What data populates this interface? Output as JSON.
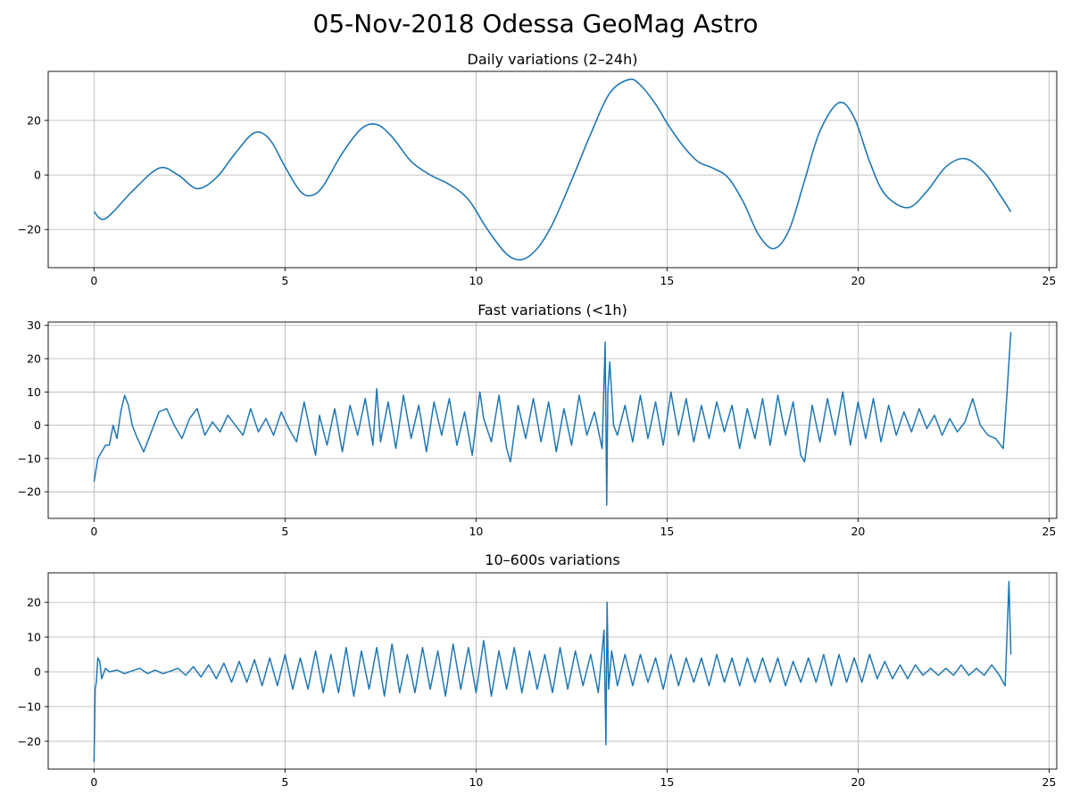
{
  "figure": {
    "title": "05-Nov-2018 Odessa GeoMag Astro",
    "line_color": "#1f77b4",
    "grid_color": "#b0b0b0"
  },
  "chart_data": [
    {
      "type": "line",
      "title": "Daily variations (2–24h)",
      "xlabel": "",
      "ylabel": "",
      "xlim": [
        -1.2,
        25.2
      ],
      "ylim": [
        -34,
        38
      ],
      "xticks": [
        0,
        5,
        10,
        15,
        20,
        25
      ],
      "yticks": [
        -20,
        0,
        20
      ],
      "grid": true,
      "style": "smooth",
      "series": [
        {
          "x": [
            0,
            0.3,
            1,
            1.7,
            2.2,
            2.7,
            3.2,
            3.7,
            4.2,
            4.6,
            5,
            5.4,
            5.7,
            6,
            6.5,
            7,
            7.4,
            7.8,
            8.3,
            8.8,
            9.3,
            9.8,
            10.3,
            10.8,
            11.2,
            11.6,
            12,
            12.5,
            13,
            13.5,
            14,
            14.3,
            14.7,
            15,
            15.4,
            15.8,
            16.2,
            16.6,
            17,
            17.4,
            17.8,
            18.2,
            18.6,
            19,
            19.5,
            19.9,
            20.3,
            20.7,
            21.3,
            21.8,
            22.3,
            22.8,
            23.3,
            23.7,
            24
          ],
          "y": [
            -13.5,
            -16,
            -6,
            2.5,
            0,
            -5,
            -1,
            8,
            15.5,
            13,
            3,
            -6,
            -7.5,
            -4,
            8,
            17,
            18.5,
            14,
            5,
            0,
            -3.5,
            -9,
            -20,
            -29,
            -31,
            -27,
            -18,
            -2,
            15,
            30,
            35,
            33,
            26,
            19,
            11,
            5,
            2.5,
            -1,
            -10,
            -22,
            -27,
            -20,
            -2,
            16,
            26.5,
            21,
            5,
            -7,
            -12,
            -6,
            3,
            6,
            1,
            -7,
            -13.5
          ]
        }
      ]
    },
    {
      "type": "line",
      "title": "Fast variations (<1h)",
      "xlabel": "",
      "ylabel": "",
      "xlim": [
        -1.2,
        25.2
      ],
      "ylim": [
        -28,
        31
      ],
      "xticks": [
        0,
        5,
        10,
        15,
        20,
        25
      ],
      "yticks": [
        -20,
        -10,
        0,
        10,
        20,
        30
      ],
      "grid": true,
      "style": "linear",
      "series": [
        {
          "x": [
            0,
            0.1,
            0.3,
            0.4,
            0.5,
            0.6,
            0.7,
            0.8,
            0.9,
            1.0,
            1.1,
            1.3,
            1.5,
            1.7,
            1.9,
            2.1,
            2.3,
            2.5,
            2.7,
            2.9,
            3.1,
            3.3,
            3.5,
            3.7,
            3.9,
            4.1,
            4.3,
            4.5,
            4.7,
            4.9,
            5.1,
            5.3,
            5.5,
            5.7,
            5.8,
            5.9,
            6.1,
            6.3,
            6.5,
            6.7,
            6.9,
            7.1,
            7.3,
            7.4,
            7.5,
            7.7,
            7.9,
            8.1,
            8.3,
            8.5,
            8.7,
            8.9,
            9.1,
            9.3,
            9.5,
            9.7,
            9.9,
            10.1,
            10.2,
            10.4,
            10.6,
            10.8,
            10.9,
            11.1,
            11.3,
            11.5,
            11.7,
            11.9,
            12.1,
            12.3,
            12.5,
            12.7,
            12.9,
            13.1,
            13.3,
            13.38,
            13.42,
            13.45,
            13.5,
            13.6,
            13.7,
            13.9,
            14.1,
            14.3,
            14.5,
            14.7,
            14.9,
            15.1,
            15.3,
            15.5,
            15.7,
            15.9,
            16.1,
            16.3,
            16.5,
            16.7,
            16.9,
            17.1,
            17.3,
            17.5,
            17.7,
            17.9,
            18.1,
            18.3,
            18.5,
            18.6,
            18.8,
            19.0,
            19.2,
            19.4,
            19.6,
            19.8,
            20.0,
            20.2,
            20.4,
            20.6,
            20.8,
            21.0,
            21.2,
            21.4,
            21.6,
            21.8,
            22.0,
            22.2,
            22.4,
            22.6,
            22.8,
            23.0,
            23.2,
            23.4,
            23.6,
            23.8,
            23.9,
            24.0
          ],
          "y": [
            -17,
            -10,
            -6,
            -6,
            0,
            -4,
            4,
            9,
            6,
            0,
            -3,
            -8,
            -2,
            4,
            5,
            0,
            -4,
            2,
            5,
            -3,
            1,
            -2,
            3,
            0,
            -3,
            5,
            -2,
            2,
            -3,
            4,
            -1,
            -5,
            7,
            -4,
            -9,
            3,
            -6,
            5,
            -8,
            6,
            -3,
            8,
            -6,
            11,
            -5,
            7,
            -7,
            9,
            -4,
            6,
            -8,
            7,
            -3,
            8,
            -6,
            4,
            -9,
            10,
            2,
            -5,
            9,
            -7,
            -11,
            6,
            -4,
            8,
            -5,
            7,
            -8,
            5,
            -6,
            9,
            -3,
            4,
            -7,
            25,
            -24,
            10,
            19,
            0,
            -3,
            6,
            -5,
            9,
            -4,
            7,
            -6,
            10,
            -3,
            8,
            -5,
            6,
            -4,
            7,
            -2,
            6,
            -7,
            5,
            -4,
            8,
            -6,
            9,
            -3,
            7,
            -9,
            -11,
            6,
            -5,
            8,
            -3,
            10,
            -6,
            7,
            -4,
            8,
            -5,
            6,
            -3,
            4,
            -2,
            5,
            -1,
            3,
            -3,
            2,
            -2,
            1,
            8,
            0,
            -3,
            -4,
            -7,
            10,
            28
          ]
        }
      ]
    },
    {
      "type": "line",
      "title": "10–600s variations",
      "xlabel": "",
      "ylabel": "",
      "xlim": [
        -1.2,
        25.2
      ],
      "ylim": [
        -28,
        28.5
      ],
      "xticks": [
        0,
        5,
        10,
        15,
        20,
        25
      ],
      "yticks": [
        -20,
        -10,
        0,
        10,
        20
      ],
      "grid": true,
      "style": "linear",
      "series": [
        {
          "x": [
            0,
            0.03,
            0.06,
            0.1,
            0.15,
            0.2,
            0.3,
            0.4,
            0.6,
            0.8,
            1.0,
            1.2,
            1.4,
            1.6,
            1.8,
            2.0,
            2.2,
            2.4,
            2.6,
            2.8,
            3.0,
            3.2,
            3.4,
            3.6,
            3.8,
            4.0,
            4.2,
            4.4,
            4.6,
            4.8,
            5.0,
            5.2,
            5.4,
            5.6,
            5.8,
            6.0,
            6.2,
            6.4,
            6.6,
            6.8,
            7.0,
            7.2,
            7.4,
            7.6,
            7.8,
            8.0,
            8.2,
            8.4,
            8.6,
            8.8,
            9.0,
            9.2,
            9.4,
            9.6,
            9.8,
            10.0,
            10.2,
            10.4,
            10.6,
            10.8,
            11.0,
            11.2,
            11.4,
            11.6,
            11.8,
            12.0,
            12.2,
            12.4,
            12.6,
            12.8,
            13.0,
            13.2,
            13.35,
            13.4,
            13.43,
            13.47,
            13.55,
            13.7,
            13.9,
            14.1,
            14.3,
            14.5,
            14.7,
            14.9,
            15.1,
            15.3,
            15.5,
            15.7,
            15.9,
            16.1,
            16.3,
            16.5,
            16.7,
            16.9,
            17.1,
            17.3,
            17.5,
            17.7,
            17.9,
            18.1,
            18.3,
            18.5,
            18.7,
            18.9,
            19.1,
            19.3,
            19.5,
            19.7,
            19.9,
            20.1,
            20.3,
            20.5,
            20.7,
            20.9,
            21.1,
            21.3,
            21.5,
            21.7,
            21.9,
            22.1,
            22.3,
            22.5,
            22.7,
            22.9,
            23.1,
            23.3,
            23.5,
            23.7,
            23.85,
            23.95,
            24.0
          ],
          "y": [
            -26,
            -5,
            -3,
            4,
            3,
            -2,
            1,
            0,
            0.5,
            -0.5,
            0.3,
            1,
            -0.5,
            0.5,
            -0.5,
            0.2,
            1,
            -1,
            1.5,
            -1.5,
            2,
            -2,
            2.5,
            -3,
            3,
            -3,
            3.5,
            -4,
            4,
            -4,
            5,
            -5,
            4,
            -5,
            6,
            -6,
            5,
            -6,
            7,
            -7,
            6,
            -5,
            7,
            -7,
            8,
            -6,
            5,
            -6,
            7,
            -5,
            6,
            -7,
            8,
            -5,
            7,
            -6,
            9,
            -7,
            6,
            -5,
            7,
            -6,
            6,
            -5,
            5,
            -6,
            7,
            -5,
            6,
            -4,
            5,
            -6,
            12,
            -21,
            20,
            -5,
            6,
            -4,
            5,
            -4,
            5,
            -3,
            4,
            -5,
            5,
            -4,
            4,
            -3,
            4,
            -4,
            5,
            -3,
            4,
            -4,
            4,
            -3,
            4,
            -3,
            4,
            -4,
            3,
            -3,
            4,
            -3,
            5,
            -4,
            5,
            -3,
            4,
            -3,
            5,
            -2,
            3,
            -2,
            2,
            -2,
            2,
            -1,
            1,
            -1,
            1,
            -1,
            2,
            -1,
            1,
            -1,
            2,
            -1,
            -4,
            26,
            5
          ]
        }
      ]
    }
  ]
}
